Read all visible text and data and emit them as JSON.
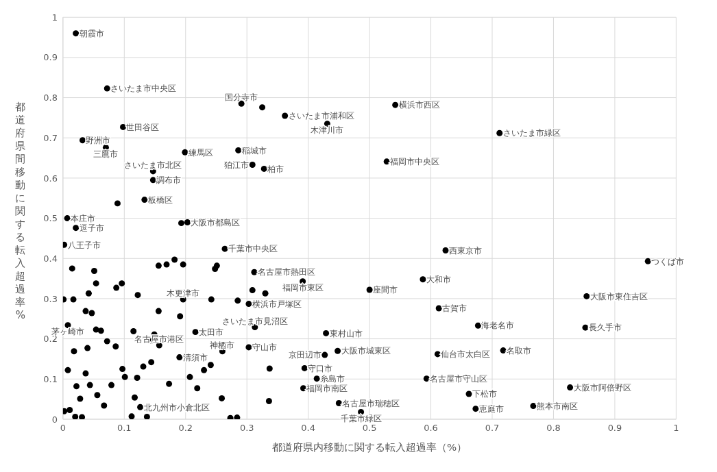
{
  "chart_data": {
    "type": "scatter",
    "xlabel": "都道府県内移動に関する転入超過率（%）",
    "ylabel": "都道府県間移動に関する転入超過率%",
    "xlim": [
      0,
      1
    ],
    "ylim": [
      0,
      1
    ],
    "xticks": [
      0,
      0.1,
      0.2,
      0.3,
      0.4,
      0.5,
      0.6,
      0.7,
      0.8,
      0.9,
      1
    ],
    "yticks": [
      0,
      0.1,
      0.2,
      0.3,
      0.4,
      0.5,
      0.6,
      0.7,
      0.8,
      0.9,
      1
    ],
    "grid": true,
    "marker": "circle",
    "series": [
      {
        "color": "#000000",
        "x": [
          0.021,
          0.072,
          0.291,
          0.325,
          0.362,
          0.098,
          0.032,
          0.07,
          0.199,
          0.286,
          0.309,
          0.328,
          0.147,
          0.147,
          0.133,
          0.089,
          0.431,
          0.542,
          0.712,
          0.528,
          0.007,
          0.021,
          0.002,
          0.264,
          0.193,
          0.203,
          0.182,
          0.015,
          0.312,
          0.054,
          0.196,
          0.008,
          0.216,
          0.303,
          0.313,
          0.624,
          0.954,
          0.391,
          0.5,
          0.587,
          0.854,
          0.613,
          0.677,
          0.852,
          0.429,
          0.448,
          0.427,
          0.611,
          0.718,
          0.593,
          0.414,
          0.392,
          0.827,
          0.662,
          0.767,
          0.673,
          0.45,
          0.486,
          0.26,
          0.303,
          0.19,
          0.126,
          0.157,
          0.394,
          0.018,
          0.04,
          0.072,
          0.086,
          0.144,
          0.008,
          0.037,
          0.097,
          0.101,
          0.121,
          0.144,
          0.131,
          0.23,
          0.241,
          0.207,
          0.022,
          0.044,
          0.079,
          0.173,
          0.219,
          0.028,
          0.056,
          0.117,
          0.259,
          0.336,
          0.002,
          0.011,
          0.02,
          0.031,
          0.067,
          0.112,
          0.137,
          0.273,
          0.284,
          0.337,
          0.156,
          0.169,
          0.196,
          0.251,
          0.248,
          0.051,
          0.096,
          0.087,
          0.042,
          0.122,
          0.001,
          0.017,
          0.037,
          0.047,
          0.156,
          0.191,
          0.242,
          0.285,
          0.309,
          0.33,
          0.054,
          0.062,
          0.115,
          0.149
        ],
        "values": [
          0.96,
          0.823,
          0.785,
          0.776,
          0.755,
          0.727,
          0.694,
          0.676,
          0.664,
          0.669,
          0.633,
          0.623,
          0.617,
          0.595,
          0.546,
          0.537,
          0.735,
          0.782,
          0.712,
          0.641,
          0.5,
          0.476,
          0.434,
          0.424,
          0.488,
          0.49,
          0.397,
          0.375,
          0.366,
          0.338,
          0.298,
          0.234,
          0.217,
          0.287,
          0.229,
          0.42,
          0.393,
          0.343,
          0.322,
          0.348,
          0.306,
          0.276,
          0.233,
          0.228,
          0.214,
          0.17,
          0.16,
          0.162,
          0.171,
          0.101,
          0.101,
          0.077,
          0.079,
          0.063,
          0.033,
          0.026,
          0.04,
          0.018,
          0.169,
          0.179,
          0.154,
          0.03,
          0.184,
          0.127,
          0.169,
          0.177,
          0.194,
          0.181,
          0.196,
          0.122,
          0.114,
          0.125,
          0.105,
          0.103,
          0.142,
          0.131,
          0.122,
          0.135,
          0.105,
          0.082,
          0.085,
          0.085,
          0.088,
          0.077,
          0.051,
          0.06,
          0.054,
          0.052,
          0.045,
          0.02,
          0.023,
          0.006,
          0.005,
          0.034,
          0.007,
          0.006,
          0.003,
          0.004,
          0.126,
          0.382,
          0.385,
          0.385,
          0.382,
          0.374,
          0.369,
          0.338,
          0.327,
          0.313,
          0.309,
          0.298,
          0.298,
          0.269,
          0.264,
          0.269,
          0.256,
          0.298,
          0.295,
          0.321,
          0.313,
          0.223,
          0.22,
          0.219,
          0.211
        ]
      }
    ],
    "annotations": [
      {
        "text": "朝霞市",
        "x": 0.021,
        "y": 0.96
      },
      {
        "text": "さいたま市中央区",
        "x": 0.072,
        "y": 0.823
      },
      {
        "text": "国分寺市",
        "x": 0.291,
        "y": 0.785
      },
      {
        "text": "さいたま市浦和区",
        "x": 0.362,
        "y": 0.755
      },
      {
        "text": "世田谷区",
        "x": 0.098,
        "y": 0.727
      },
      {
        "text": "野洲市",
        "x": 0.032,
        "y": 0.694
      },
      {
        "text": "三鷹市",
        "x": 0.07,
        "y": 0.676
      },
      {
        "text": "練馬区",
        "x": 0.199,
        "y": 0.664
      },
      {
        "text": "稲城市",
        "x": 0.286,
        "y": 0.669
      },
      {
        "text": "狛江市",
        "x": 0.309,
        "y": 0.633
      },
      {
        "text": "柏市",
        "x": 0.328,
        "y": 0.623
      },
      {
        "text": "さいたま市北区",
        "x": 0.147,
        "y": 0.617
      },
      {
        "text": "調布市",
        "x": 0.147,
        "y": 0.595
      },
      {
        "text": "板橋区",
        "x": 0.133,
        "y": 0.546
      },
      {
        "text": "木津川市",
        "x": 0.431,
        "y": 0.735
      },
      {
        "text": "横浜市西区",
        "x": 0.542,
        "y": 0.782
      },
      {
        "text": "さいたま市緑区",
        "x": 0.712,
        "y": 0.712
      },
      {
        "text": "福岡市中央区",
        "x": 0.528,
        "y": 0.641
      },
      {
        "text": "本庄市",
        "x": 0.007,
        "y": 0.5
      },
      {
        "text": "逗子市",
        "x": 0.021,
        "y": 0.476
      },
      {
        "text": "八王子市",
        "x": 0.002,
        "y": 0.434
      },
      {
        "text": "千葉市中央区",
        "x": 0.264,
        "y": 0.424
      },
      {
        "text": "大阪市都島区",
        "x": 0.203,
        "y": 0.49
      },
      {
        "text": "名古屋市熱田区",
        "x": 0.312,
        "y": 0.366
      },
      {
        "text": "木更津市",
        "x": 0.196,
        "y": 0.298
      },
      {
        "text": "茅ヶ崎市",
        "x": 0.008,
        "y": 0.234
      },
      {
        "text": "太田市",
        "x": 0.216,
        "y": 0.217
      },
      {
        "text": "横浜市戸塚区",
        "x": 0.303,
        "y": 0.287
      },
      {
        "text": "さいたま市見沼区",
        "x": 0.313,
        "y": 0.229
      },
      {
        "text": "西東京市",
        "x": 0.624,
        "y": 0.42
      },
      {
        "text": "つくば市",
        "x": 0.954,
        "y": 0.393
      },
      {
        "text": "福岡市東区",
        "x": 0.391,
        "y": 0.343
      },
      {
        "text": "座間市",
        "x": 0.5,
        "y": 0.322
      },
      {
        "text": "大和市",
        "x": 0.587,
        "y": 0.348
      },
      {
        "text": "大阪市東住吉区",
        "x": 0.854,
        "y": 0.306
      },
      {
        "text": "古賀市",
        "x": 0.613,
        "y": 0.276
      },
      {
        "text": "海老名市",
        "x": 0.677,
        "y": 0.233
      },
      {
        "text": "長久手市",
        "x": 0.852,
        "y": 0.228
      },
      {
        "text": "東村山市",
        "x": 0.429,
        "y": 0.214
      },
      {
        "text": "大阪市城東区",
        "x": 0.448,
        "y": 0.17
      },
      {
        "text": "京田辺市",
        "x": 0.427,
        "y": 0.16
      },
      {
        "text": "仙台市太白区",
        "x": 0.611,
        "y": 0.162
      },
      {
        "text": "名取市",
        "x": 0.718,
        "y": 0.171
      },
      {
        "text": "名古屋市守山区",
        "x": 0.593,
        "y": 0.101
      },
      {
        "text": "糸島市",
        "x": 0.414,
        "y": 0.101
      },
      {
        "text": "福岡市南区",
        "x": 0.392,
        "y": 0.077
      },
      {
        "text": "大阪市阿倍野区",
        "x": 0.827,
        "y": 0.079
      },
      {
        "text": "下松市",
        "x": 0.662,
        "y": 0.063
      },
      {
        "text": "熊本市南区",
        "x": 0.767,
        "y": 0.033
      },
      {
        "text": "恵庭市",
        "x": 0.673,
        "y": 0.026
      },
      {
        "text": "名古屋市瑞穂区",
        "x": 0.45,
        "y": 0.04
      },
      {
        "text": "千葉市緑区",
        "x": 0.486,
        "y": 0.018
      },
      {
        "text": "神栖市",
        "x": 0.26,
        "y": 0.169
      },
      {
        "text": "守山市",
        "x": 0.303,
        "y": 0.179
      },
      {
        "text": "清須市",
        "x": 0.19,
        "y": 0.154
      },
      {
        "text": "北九州市小倉北区",
        "x": 0.126,
        "y": 0.03
      },
      {
        "text": "名古屋市港区",
        "x": 0.157,
        "y": 0.184
      },
      {
        "text": "守口市",
        "x": 0.394,
        "y": 0.127
      }
    ]
  }
}
